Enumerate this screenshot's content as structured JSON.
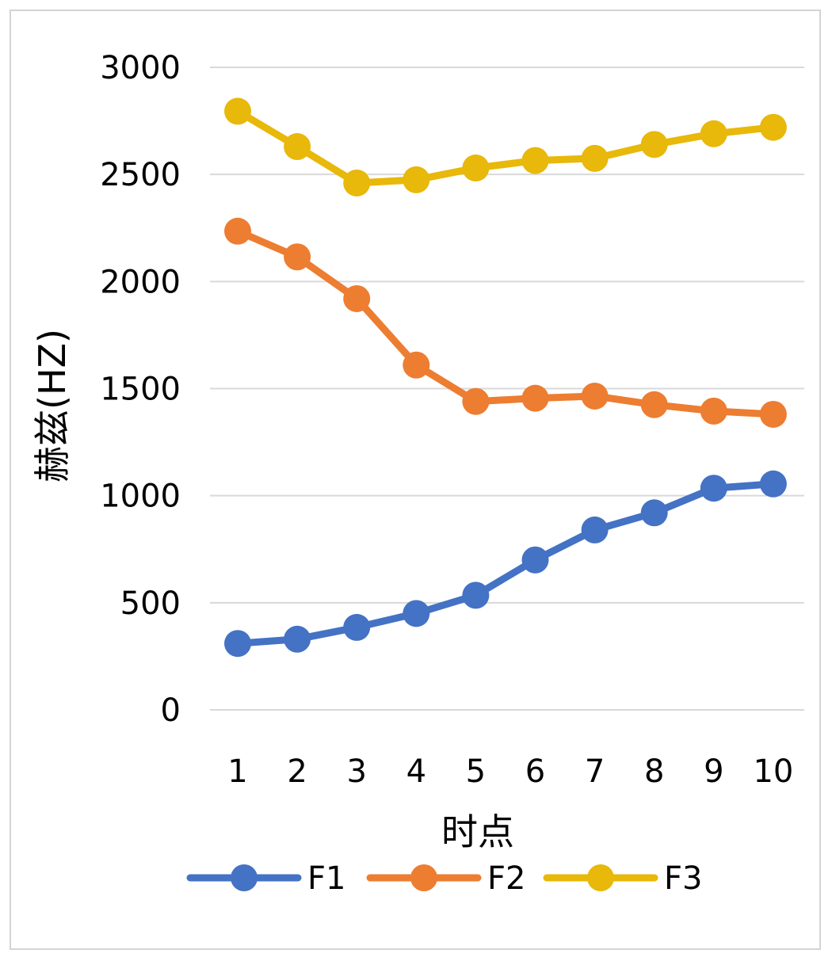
{
  "chart_data": {
    "type": "line",
    "xlabel": "时点",
    "ylabel": "赫兹(HZ)",
    "categories": [
      "1",
      "2",
      "3",
      "4",
      "5",
      "6",
      "7",
      "8",
      "9",
      "10"
    ],
    "ylim": [
      0,
      3000
    ],
    "yticks": [
      0,
      500,
      1000,
      1500,
      2000,
      2500,
      3000
    ],
    "grid": true,
    "legend_position": "bottom",
    "series": [
      {
        "name": "F1",
        "color": "#4472C4",
        "values": [
          310,
          330,
          385,
          450,
          535,
          700,
          840,
          920,
          1035,
          1055
        ]
      },
      {
        "name": "F2",
        "color": "#ED7D31",
        "values": [
          2235,
          2115,
          1920,
          1610,
          1440,
          1455,
          1465,
          1425,
          1395,
          1380
        ]
      },
      {
        "name": "F3",
        "color": "#E8B80A",
        "values": [
          2795,
          2630,
          2460,
          2475,
          2530,
          2565,
          2575,
          2640,
          2690,
          2720
        ]
      }
    ]
  }
}
